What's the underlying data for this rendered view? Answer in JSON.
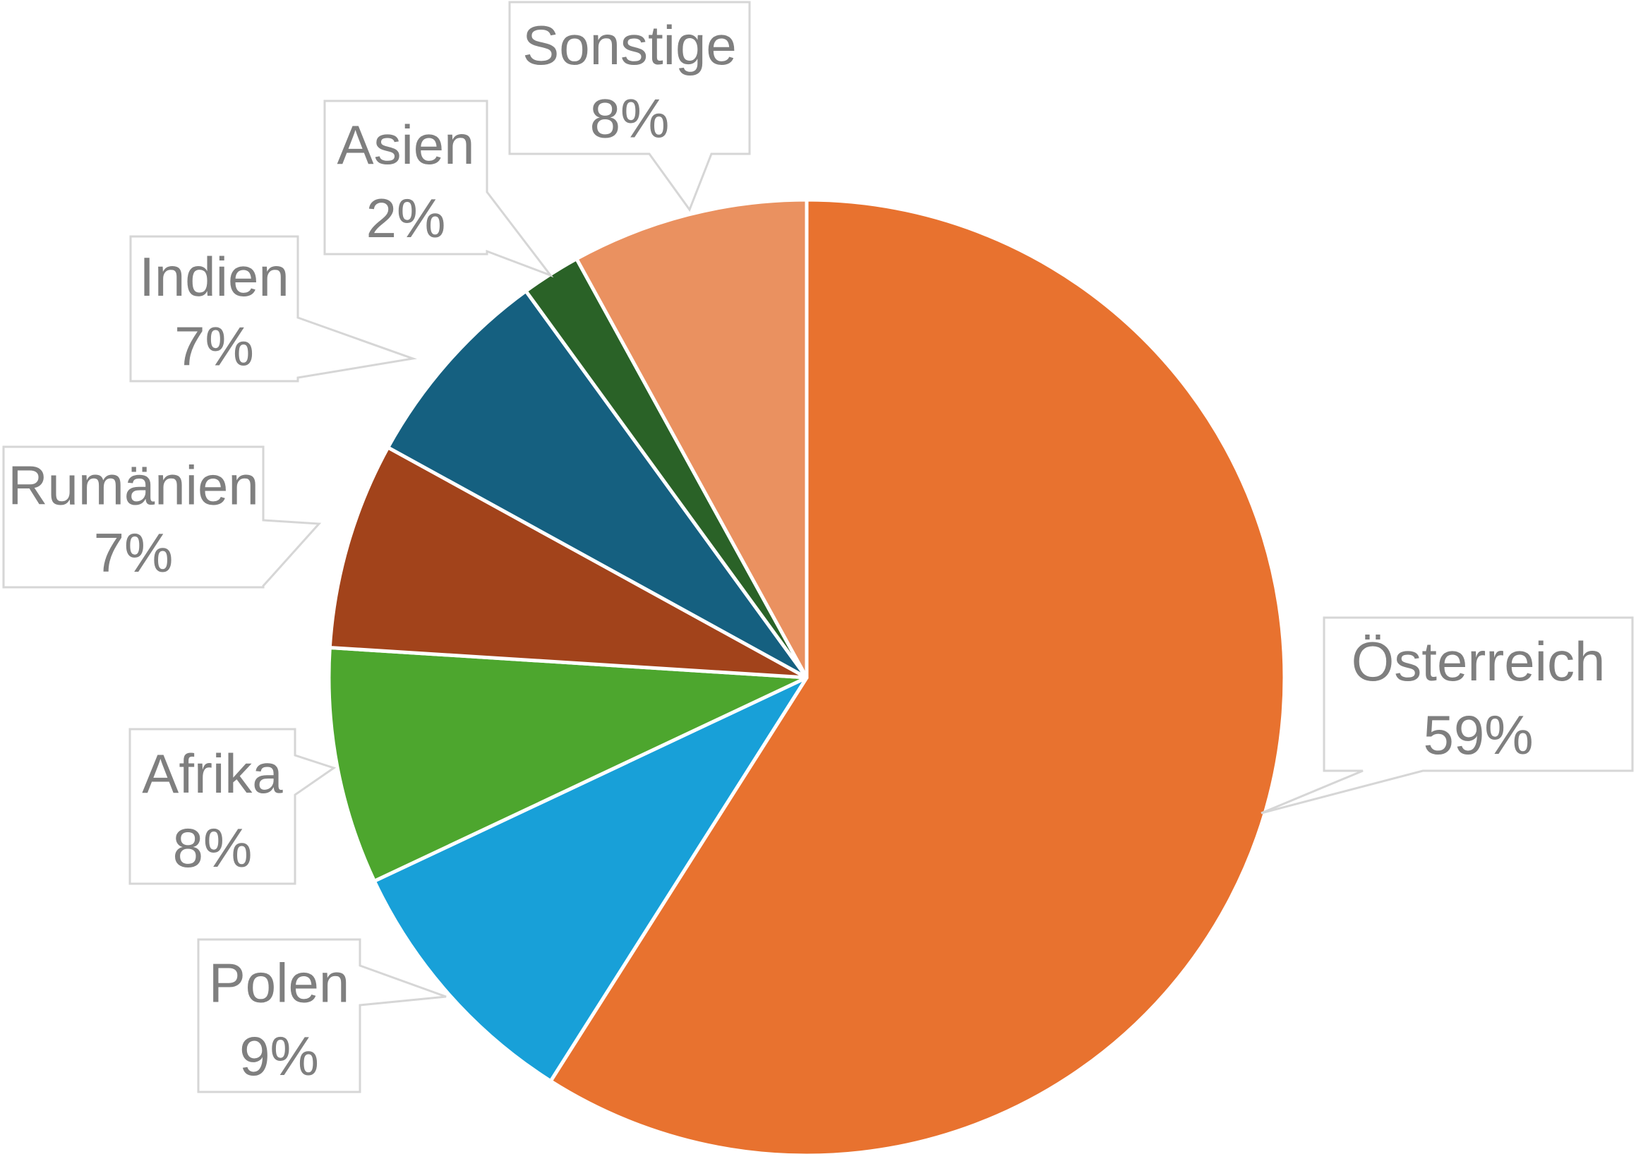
{
  "chart_data": {
    "type": "pie",
    "title": "",
    "categories": [
      "Österreich",
      "Polen",
      "Afrika",
      "Rumänien",
      "Indien",
      "Asien",
      "Sonstige"
    ],
    "values": [
      59,
      9,
      8,
      7,
      7,
      2,
      8
    ],
    "labels_pct": [
      "59%",
      "9%",
      "8%",
      "7%",
      "7%",
      "2%",
      "8%"
    ],
    "series_colors": [
      "#E8722F",
      "#18A0D8",
      "#4DA62E",
      "#A2431B",
      "#156080",
      "#2A6227",
      "#EA9160"
    ],
    "start_angle_deg": 0,
    "direction": "clockwise",
    "legend_position": "none",
    "grid": false,
    "callout_text_color": "#7F7F7F",
    "callout_border_color": "#D6D6D6",
    "callout_fill_color": "#FFFFFF",
    "slice_divider_color": "#FFFFFF",
    "background_color": "#FFFFFF"
  }
}
